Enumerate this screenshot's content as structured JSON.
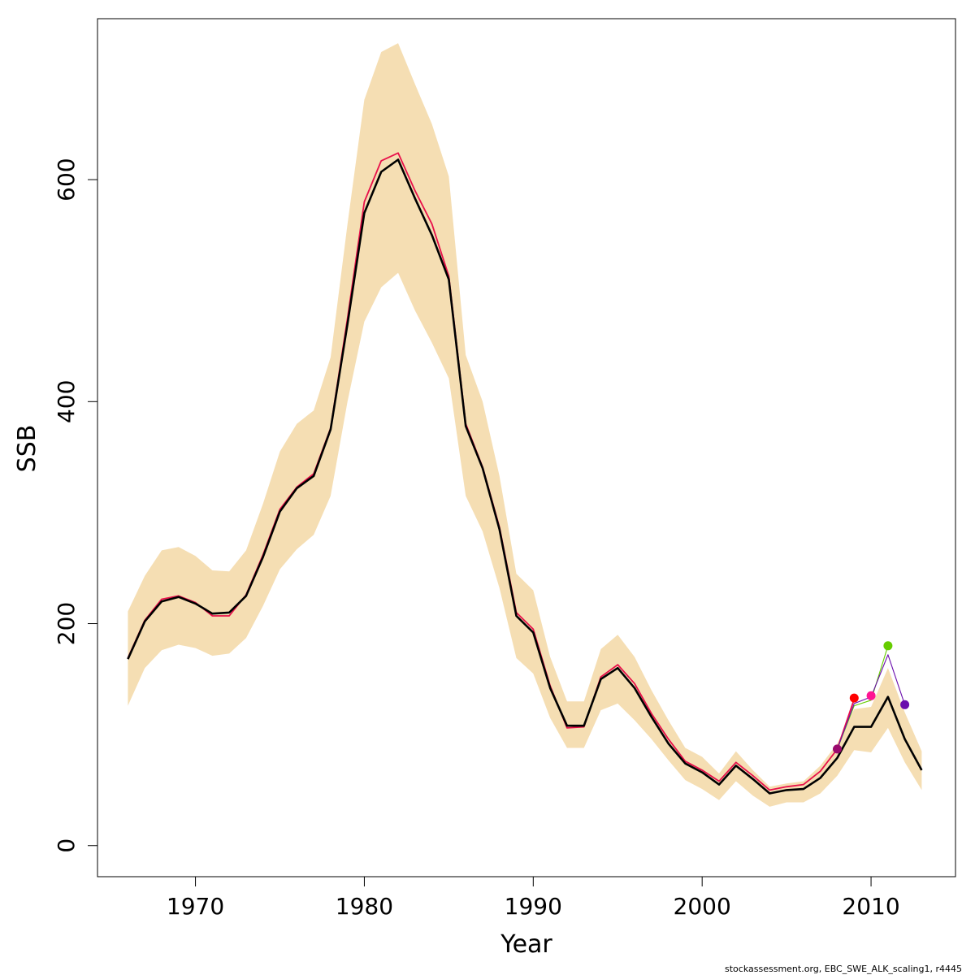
{
  "chart_data": {
    "type": "line",
    "xlabel": "Year",
    "ylabel": "SSB",
    "xlim": [
      1964.2,
      1915.0
    ],
    "ylim": [
      -28,
      745
    ],
    "x_ticks": [
      1970,
      1980,
      1990,
      2000,
      2010
    ],
    "x_tick_labels": [
      "1970",
      "1980",
      "1990",
      "2000",
      "2010"
    ],
    "y_ticks": [
      0,
      200,
      400,
      600
    ],
    "y_tick_labels": [
      "0",
      "200",
      "400",
      "600"
    ],
    "grid": false,
    "footer": "stockassessment.org, EBC_SWE_ALK_scaling1, r4445",
    "colors": {
      "band": "#f5deb3",
      "main": "#000000",
      "retro": "#e8104a",
      "point_2008": "#9b0a6e",
      "point_2009": "#ff0000",
      "point_2010": "#ff1493",
      "point_2011": "#66cc00",
      "point_2012": "#6a0dad"
    },
    "band": {
      "x": [
        1966,
        1967,
        1968,
        1969,
        1970,
        1971,
        1972,
        1973,
        1974,
        1975,
        1976,
        1977,
        1978,
        1979,
        1980,
        1981,
        1982,
        1983,
        1984,
        1985,
        1986,
        1987,
        1988,
        1989,
        1990,
        1991,
        1992,
        1993,
        1994,
        1995,
        1996,
        1997,
        1998,
        1999,
        2000,
        2001,
        2002,
        2003,
        2004,
        2005,
        2006,
        2007,
        2008,
        2009,
        2010,
        2011,
        2012,
        2013
      ],
      "upper": [
        211,
        243,
        266,
        269,
        261,
        248,
        247,
        266,
        308,
        355,
        380,
        392,
        440,
        560,
        672,
        715,
        723,
        686,
        650,
        603,
        442,
        400,
        333,
        245,
        230,
        170,
        130,
        130,
        177,
        190,
        170,
        140,
        113,
        88,
        80,
        65,
        85,
        68,
        53,
        56,
        58,
        72,
        92,
        123,
        125,
        160,
        120,
        85
      ],
      "lower": [
        126,
        160,
        176,
        181,
        178,
        171,
        173,
        187,
        216,
        249,
        267,
        280,
        315,
        400,
        472,
        503,
        516,
        482,
        453,
        421,
        315,
        283,
        232,
        169,
        155,
        115,
        88,
        88,
        122,
        128,
        113,
        96,
        77,
        59,
        51,
        41,
        58,
        45,
        35,
        39,
        39,
        47,
        63,
        86,
        84,
        106,
        75,
        50
      ]
    },
    "series": [
      {
        "x": [
          1966,
          1967,
          1968,
          1969,
          1970,
          1971,
          1972,
          1973,
          1974,
          1975,
          1976,
          1977,
          1978,
          1979,
          1980,
          1981,
          1982,
          1983,
          1984,
          1985,
          1986,
          1987,
          1988,
          1989,
          1990,
          1991,
          1992,
          1993,
          1994,
          1995,
          1996,
          1997,
          1998,
          1999,
          2000,
          2001,
          2002,
          2003,
          2004,
          2005,
          2006,
          2007,
          2008,
          2009,
          2010,
          2011,
          2012,
          2013
        ],
        "values": [
          168,
          202,
          220,
          224,
          218,
          209,
          210,
          225,
          260,
          301,
          322,
          333,
          375,
          470,
          570,
          607,
          618,
          583,
          550,
          510,
          378,
          340,
          285,
          207,
          192,
          142,
          108,
          108,
          150,
          160,
          142,
          116,
          92,
          74,
          66,
          55,
          72,
          60,
          47,
          50,
          51,
          61,
          79,
          107,
          107,
          134,
          96,
          68
        ]
      },
      {
        "x": [
          1966,
          1967,
          1968,
          1969,
          1970,
          1971,
          1972,
          1973,
          1974,
          1975,
          1976,
          1977,
          1978,
          1979,
          1980,
          1981,
          1982,
          1983,
          1984,
          1985,
          1986,
          1987,
          1988,
          1989,
          1990,
          1991,
          1992,
          1993,
          1994,
          1995,
          1996,
          1997,
          1998,
          1999,
          2000,
          2001,
          2002,
          2003,
          2004,
          2005,
          2006,
          2007,
          2008,
          2009
        ],
        "values": [
          169,
          203,
          222,
          225,
          219,
          207,
          207,
          226,
          262,
          303,
          323,
          335,
          376,
          475,
          580,
          617,
          624,
          590,
          560,
          513,
          380,
          341,
          287,
          210,
          195,
          144,
          106,
          107,
          152,
          163,
          146,
          119,
          96,
          76,
          68,
          58,
          75,
          63,
          50,
          53,
          55,
          67,
          87,
          132
        ]
      },
      {
        "x": [
          2008,
          2009,
          2010,
          2011,
          2012
        ],
        "values": [
          87,
          128,
          134,
          172,
          127
        ]
      },
      {
        "x": [
          2008,
          2009,
          2010,
          2011
        ],
        "values": [
          87,
          126,
          131,
          180
        ]
      }
    ],
    "points": [
      {
        "x": 2008,
        "y": 87
      },
      {
        "x": 2009,
        "y": 133
      },
      {
        "x": 2010,
        "y": 135
      },
      {
        "x": 2011,
        "y": 180
      },
      {
        "x": 2012,
        "y": 127
      }
    ]
  }
}
